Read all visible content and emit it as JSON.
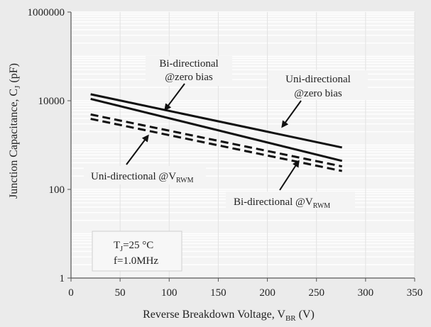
{
  "chart_data": {
    "type": "line",
    "xlabel": "Reverse Breakdown Voltage, V",
    "xlabel_sub": "BR",
    "xlabel_unit": "(V)",
    "ylabel": "Junction Capacitance, C",
    "ylabel_sub": "J",
    "ylabel_unit": "(pF)",
    "xlim": [
      0,
      350
    ],
    "x_ticks": [
      0,
      50,
      100,
      150,
      200,
      250,
      300,
      350
    ],
    "x_tick_labels": [
      "0",
      "50",
      "100",
      "150",
      "200",
      "250",
      "300",
      "350"
    ],
    "y_scale": "log",
    "ylim": [
      1,
      1000000
    ],
    "y_ticks": [
      1,
      100,
      10000,
      1000000
    ],
    "y_tick_labels": [
      "1",
      "100",
      "10000",
      "1000000"
    ],
    "grid": true,
    "series": [
      {
        "x": [
          20,
          276
        ],
        "y": [
          14000,
          880
        ],
        "color": "#111111",
        "dash": "solid"
      },
      {
        "x": [
          20,
          276
        ],
        "y": [
          11000,
          440
        ],
        "color": "#111111",
        "dash": "solid"
      },
      {
        "x": [
          20,
          276
        ],
        "y": [
          4900,
          330
        ],
        "color": "#111111",
        "dash": "dashed"
      },
      {
        "x": [
          20,
          276
        ],
        "y": [
          3900,
          260
        ],
        "color": "#111111",
        "dash": "dashed"
      }
    ],
    "annotations": [
      {
        "label_lines": [
          "Bi-directional",
          "@zero bias"
        ]
      },
      {
        "label_lines": [
          "Uni-directional",
          "@zero bias"
        ]
      },
      {
        "label_main": "Uni-directional @V",
        "label_sub": "RWM"
      },
      {
        "label_main": "Bi-directional @V",
        "label_sub": "RWM"
      }
    ],
    "conditions": {
      "line1_main": "T",
      "line1_sub": "J",
      "line1_rest": "=25 °C",
      "line2": "f=1.0MHz"
    }
  }
}
